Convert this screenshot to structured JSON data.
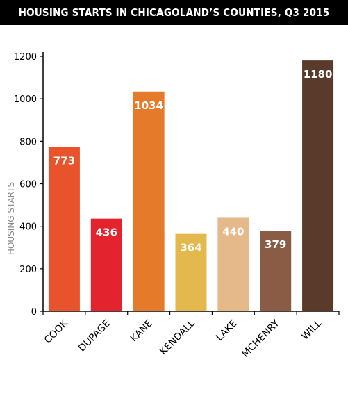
{
  "header": {
    "title": "HOUSING STARTS IN CHICAGOLAND’S COUNTIES, Q3 2015"
  },
  "chart_data": {
    "type": "bar",
    "title": "HOUSING STARTS IN CHICAGOLAND’S COUNTIES, Q3 2015",
    "xlabel": "",
    "ylabel": "HOUSING STARTS",
    "categories": [
      "COOK",
      "DUPAGE",
      "KANE",
      "KENDALL",
      "LAKE",
      "MCHENRY",
      "WILL"
    ],
    "values": [
      773,
      436,
      1034,
      364,
      440,
      379,
      1180
    ],
    "data_labels": [
      "773",
      "436",
      "1034",
      "364",
      "440",
      "379",
      "1180"
    ],
    "colors": [
      "#e9532b",
      "#e3232d",
      "#e57b2a",
      "#e3b84c",
      "#e5b98a",
      "#8b5c45",
      "#5a3a2a"
    ],
    "ylim": [
      0,
      1200
    ],
    "yticks": [
      0,
      200,
      400,
      600,
      800,
      1000,
      1200
    ],
    "grid": false,
    "legend": "none"
  }
}
